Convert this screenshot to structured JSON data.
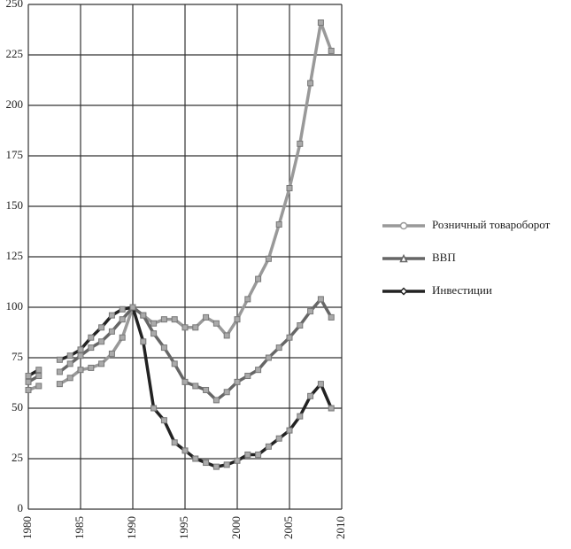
{
  "chart_data": {
    "type": "line",
    "x": [
      1980,
      1981,
      1982,
      1983,
      1984,
      1985,
      1986,
      1987,
      1988,
      1989,
      1990,
      1991,
      1992,
      1993,
      1994,
      1995,
      1996,
      1997,
      1998,
      1999,
      2000,
      2001,
      2002,
      2003,
      2004,
      2005,
      2006,
      2007,
      2008,
      2009
    ],
    "series": [
      {
        "name": "Розничный товароборот",
        "color": "#999999",
        "marker": "circle",
        "values": [
          59,
          61,
          null,
          62,
          65,
          69,
          70,
          72,
          77,
          85,
          100,
          96,
          92,
          94,
          94,
          90,
          90,
          95,
          92,
          86,
          94,
          104,
          114,
          124,
          141,
          159,
          181,
          211,
          241,
          227
        ]
      },
      {
        "name": "ВВП",
        "color": "#666666",
        "marker": "triangle",
        "values": [
          63,
          66,
          null,
          68,
          72,
          76,
          80,
          83,
          88,
          94,
          100,
          96,
          87,
          80,
          72,
          63,
          61,
          59,
          54,
          58,
          63,
          66,
          69,
          75,
          80,
          85,
          91,
          98,
          104,
          95
        ]
      },
      {
        "name": "Инвестиции",
        "color": "#222222",
        "marker": "diamond",
        "values": [
          66,
          69,
          null,
          74,
          76,
          79,
          85,
          90,
          96,
          99,
          100,
          83,
          50,
          44,
          33,
          29,
          25,
          23,
          21,
          22,
          24,
          27,
          27,
          31,
          35,
          39,
          46,
          56,
          62,
          50
        ]
      }
    ],
    "xlim": [
      1980,
      2010
    ],
    "xticks": [
      1980,
      1985,
      1990,
      1995,
      2000,
      2005,
      2010
    ],
    "ylim": [
      0,
      250
    ],
    "yticks": [
      0,
      25,
      50,
      75,
      100,
      125,
      150,
      175,
      200,
      225,
      250
    ],
    "grid": true,
    "legend": "right"
  }
}
